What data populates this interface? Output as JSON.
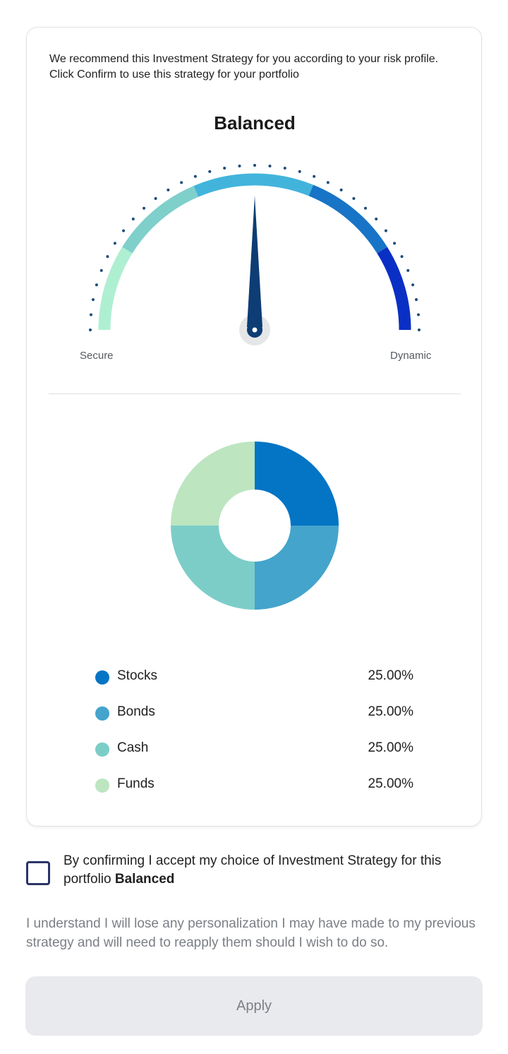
{
  "intro": {
    "line1": "We recommend this Investment Strategy for you according to your risk profile.",
    "line2": "Click Confirm to use this strategy for your portfolio"
  },
  "strategy": {
    "name": "Balanced"
  },
  "gauge": {
    "min_label": "Secure",
    "max_label": "Dynamic",
    "needle_level": 0.5,
    "segments": [
      {
        "color": "#aeefd2"
      },
      {
        "color": "#7fcfcb"
      },
      {
        "color": "#42b4dc"
      },
      {
        "color": "#1874c6"
      },
      {
        "color": "#0a2fc4"
      }
    ],
    "needle_color": "#0d3d74"
  },
  "chart_data": {
    "type": "pie",
    "subtype": "donut",
    "categories": [
      "Stocks",
      "Bonds",
      "Cash",
      "Funds"
    ],
    "values": [
      25.0,
      25.0,
      25.0,
      25.0
    ],
    "colors": [
      "#0474c4",
      "#44a4cc",
      "#7ccdc8",
      "#bce5c0"
    ]
  },
  "legend": [
    {
      "label": "Stocks",
      "value": "25.00%",
      "color": "#0474c4"
    },
    {
      "label": "Bonds",
      "value": "25.00%",
      "color": "#44a4cc"
    },
    {
      "label": "Cash",
      "value": "25.00%",
      "color": "#7ccdc8"
    },
    {
      "label": "Funds",
      "value": "25.00%",
      "color": "#bce5c0"
    }
  ],
  "consent": {
    "checked": false,
    "text": "By confirming I accept my choice of Investment Strategy for this portfolio",
    "strategy_name": "Balanced"
  },
  "disclaimer": "I understand I will lose any personalization I may have made to my previous strategy and will need to reapply them should I wish to do so.",
  "apply_button": {
    "label": "Apply"
  }
}
